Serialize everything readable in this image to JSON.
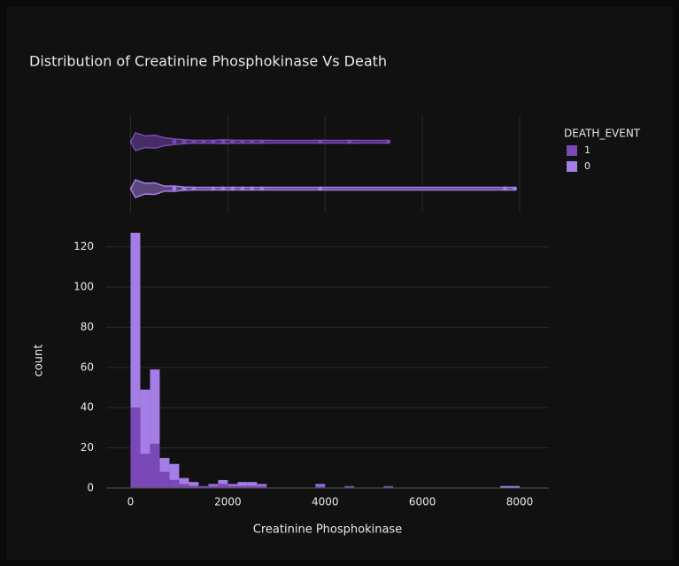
{
  "chart_data": {
    "type": "histogram",
    "title": "Distribution of Creatinine Phosphokinase Vs Death",
    "x_label": "Creatinine Phosphokinase",
    "y_label": "count",
    "legend_title": "DEATH_EVENT",
    "legend_position": "right",
    "barmode": "stack",
    "marginal": "violin",
    "bins": [
      0,
      200,
      400,
      600,
      800,
      1000,
      1200,
      1400,
      1600,
      1800,
      2000,
      2200,
      2400,
      2600,
      2800,
      3000,
      3200,
      3400,
      3600,
      3800,
      4000,
      4200,
      4400,
      4600,
      4800,
      5000,
      5200,
      5400,
      5600,
      5800,
      6000,
      6200,
      6400,
      6600,
      6800,
      7000,
      7200,
      7400,
      7600,
      7800,
      8000
    ],
    "series": [
      {
        "name": "1",
        "color": "#7b48b8",
        "values": [
          40,
          17,
          22,
          8,
          4,
          2,
          1,
          1,
          1,
          2,
          1,
          1,
          1,
          1,
          0,
          0,
          0,
          0,
          0,
          1,
          0,
          0,
          1,
          0,
          0,
          0,
          1,
          0,
          0,
          0,
          0,
          0,
          0,
          0,
          0,
          0,
          0,
          0,
          0,
          0
        ]
      },
      {
        "name": "0",
        "color": "#a47de6",
        "values": [
          87,
          32,
          37,
          7,
          8,
          3,
          2,
          0,
          1,
          2,
          1,
          2,
          2,
          1,
          0,
          0,
          0,
          0,
          0,
          1,
          0,
          0,
          0,
          0,
          0,
          0,
          0,
          0,
          0,
          0,
          0,
          0,
          0,
          0,
          0,
          0,
          0,
          0,
          1,
          1
        ]
      }
    ],
    "xlim": [
      -500,
      8600
    ],
    "xticks": [
      0,
      2000,
      4000,
      6000,
      8000
    ],
    "ylim": [
      0,
      130
    ],
    "yticks": [
      0,
      20,
      40,
      60,
      80,
      100,
      120
    ],
    "grid": true
  }
}
